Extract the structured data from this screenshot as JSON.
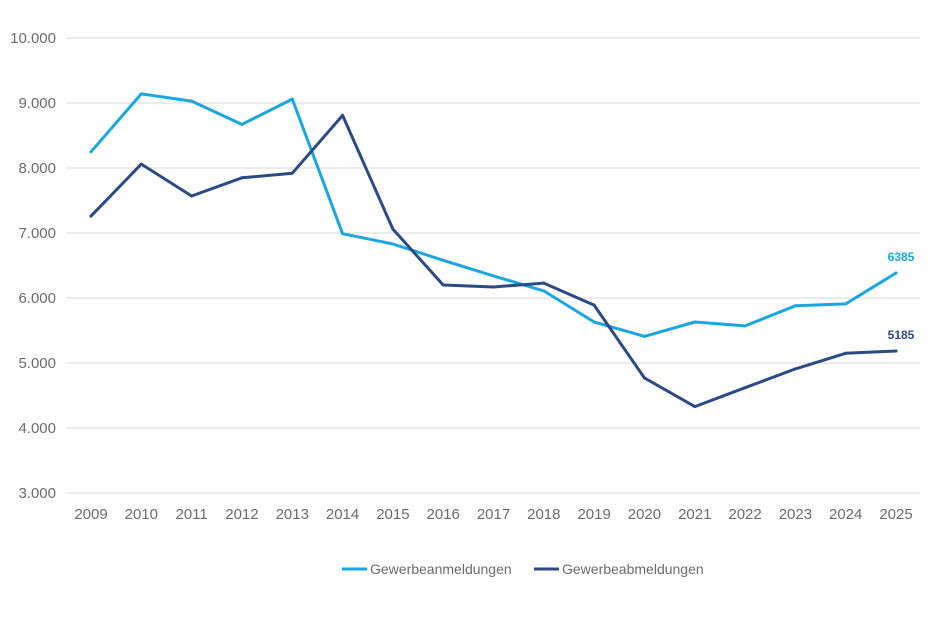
{
  "chart_data": {
    "type": "line",
    "x": [
      "2009",
      "2010",
      "2011",
      "2012",
      "2013",
      "2014",
      "2015",
      "2016",
      "2017",
      "2018",
      "2019",
      "2020",
      "2021",
      "2022",
      "2023",
      "2024",
      "2025"
    ],
    "y_ticks": [
      3000,
      4000,
      5000,
      6000,
      7000,
      8000,
      9000,
      10000
    ],
    "y_tick_labels": [
      "3.000",
      "4.000",
      "5.000",
      "6.000",
      "7.000",
      "8.000",
      "9.000",
      "10.000"
    ],
    "ylim": [
      3000,
      10000
    ],
    "grid": "horizontal",
    "legend_position": "bottom-center",
    "series": [
      {
        "name": "Gewerbeanmeldungen",
        "color": "#1aa7df",
        "values": [
          8250,
          9140,
          9030,
          8670,
          9060,
          6990,
          6830,
          6580,
          6340,
          6110,
          5630,
          5410,
          5630,
          5570,
          5880,
          5910,
          6385
        ],
        "end_label": "6385"
      },
      {
        "name": "Gewerbeabmeldungen",
        "color": "#2b4a86",
        "values": [
          7260,
          8060,
          7570,
          7850,
          7920,
          8810,
          7060,
          6200,
          6170,
          6230,
          5890,
          4770,
          4330,
          4620,
          4910,
          5150,
          5185
        ],
        "end_label": "5185"
      }
    ]
  }
}
